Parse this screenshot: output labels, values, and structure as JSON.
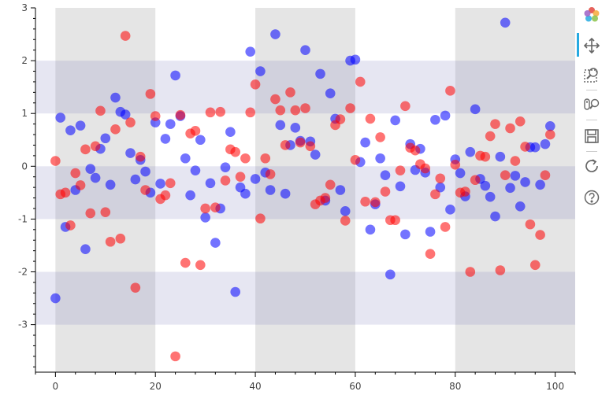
{
  "chart_data": {
    "type": "scatter",
    "title": "",
    "xlabel": "",
    "ylabel": "",
    "xlim": [
      -4,
      104
    ],
    "ylim": [
      -3.9,
      3
    ],
    "x_ticks": [
      "0",
      "20",
      "40",
      "60",
      "80",
      "100"
    ],
    "y_ticks": [
      "3",
      "2",
      "1",
      "0",
      "-1",
      "-2",
      "-3"
    ],
    "x_bands": [
      [
        0,
        20
      ],
      [
        40,
        60
      ],
      [
        80,
        104
      ]
    ],
    "y_bands": [
      [
        1,
        2
      ],
      [
        -1,
        0
      ],
      [
        -3,
        -2
      ]
    ],
    "series": [
      {
        "color": "#0000ff",
        "x": [
          0,
          1,
          2,
          3,
          4,
          5,
          6,
          7,
          8,
          9,
          10,
          11,
          12,
          13,
          14,
          15,
          16,
          17,
          18,
          19,
          20,
          21,
          22,
          23,
          24,
          25,
          26,
          27,
          28,
          29,
          30,
          31,
          32,
          33,
          34,
          35,
          36,
          37,
          38,
          39,
          40,
          41,
          42,
          43,
          44,
          45,
          46,
          47,
          48,
          49,
          50,
          51,
          52,
          53,
          54,
          55,
          56,
          57,
          58,
          59,
          60,
          61,
          62,
          63,
          64,
          65,
          66,
          67,
          68,
          69,
          70,
          71,
          72,
          73,
          74,
          75,
          76,
          77,
          78,
          79,
          80,
          81,
          82,
          83,
          84,
          85,
          86,
          87,
          88,
          89,
          90,
          91,
          92,
          93,
          94,
          95,
          96,
          97,
          98,
          99
        ],
        "y": [
          -2.5,
          0.92,
          -1.15,
          0.68,
          -0.45,
          0.77,
          -1.57,
          -0.05,
          -0.22,
          0.33,
          0.53,
          -0.35,
          1.3,
          1.03,
          0.98,
          0.25,
          -0.25,
          0.12,
          -0.1,
          -0.5,
          0.83,
          -0.33,
          0.52,
          0.8,
          1.72,
          0.95,
          0.15,
          -0.55,
          -0.08,
          0.5,
          -0.97,
          -0.32,
          -1.45,
          -0.8,
          -0.02,
          0.65,
          -2.38,
          -0.4,
          -0.52,
          2.17,
          -0.24,
          1.8,
          -0.12,
          -0.45,
          2.5,
          0.78,
          -0.52,
          0.4,
          0.73,
          0.48,
          2.2,
          0.47,
          0.22,
          1.75,
          -0.65,
          1.38,
          0.9,
          -0.45,
          -0.85,
          2.0,
          2.02,
          0.08,
          0.45,
          -1.2,
          -0.72,
          0.15,
          -0.17,
          -2.05,
          0.87,
          -0.38,
          -1.29,
          0.42,
          -0.07,
          0.33,
          -0.12,
          -1.24,
          0.88,
          -0.4,
          0.96,
          -0.82,
          0.13,
          -0.13,
          -0.57,
          0.27,
          1.08,
          -0.24,
          -0.37,
          -0.58,
          -0.95,
          0.18,
          2.72,
          -0.41,
          -0.18,
          -0.76,
          -0.3,
          0.36,
          0.36,
          -0.35,
          0.42,
          0.76
        ]
      },
      {
        "color": "#ff0000",
        "x": [
          0,
          1,
          2,
          3,
          4,
          5,
          6,
          7,
          8,
          9,
          10,
          11,
          12,
          13,
          14,
          15,
          16,
          17,
          18,
          19,
          20,
          21,
          22,
          23,
          24,
          25,
          26,
          27,
          28,
          29,
          30,
          31,
          32,
          33,
          34,
          35,
          36,
          37,
          38,
          39,
          40,
          41,
          42,
          43,
          44,
          45,
          46,
          47,
          48,
          49,
          50,
          51,
          52,
          53,
          54,
          55,
          56,
          57,
          58,
          59,
          60,
          61,
          62,
          63,
          64,
          65,
          66,
          67,
          68,
          69,
          70,
          71,
          72,
          73,
          74,
          75,
          76,
          77,
          78,
          79,
          80,
          81,
          82,
          83,
          84,
          85,
          86,
          87,
          88,
          89,
          90,
          91,
          92,
          93,
          94,
          95,
          96,
          97,
          98,
          99
        ],
        "y": [
          0.1,
          -0.53,
          -0.5,
          -1.12,
          -0.13,
          -0.36,
          0.32,
          -0.89,
          0.38,
          1.05,
          -0.87,
          -1.43,
          0.7,
          -1.37,
          2.47,
          0.83,
          -2.3,
          0.18,
          -0.45,
          1.37,
          0.95,
          -0.62,
          -0.55,
          -0.32,
          -3.6,
          0.97,
          -1.83,
          0.62,
          0.67,
          -1.87,
          -0.8,
          1.02,
          -0.78,
          1.03,
          -0.27,
          0.32,
          0.27,
          -0.2,
          0.15,
          1.02,
          1.55,
          -0.99,
          0.15,
          -0.15,
          1.27,
          1.06,
          0.4,
          1.4,
          1.06,
          0.45,
          1.1,
          0.38,
          -0.72,
          -0.65,
          -0.6,
          -0.35,
          0.78,
          0.89,
          -1.03,
          1.1,
          0.12,
          1.6,
          -0.67,
          0.9,
          -0.68,
          0.55,
          -0.48,
          -1.02,
          -1.02,
          -0.08,
          1.14,
          0.35,
          0.3,
          0.04,
          -0.04,
          -1.66,
          -0.53,
          -0.23,
          -1.15,
          1.43,
          0.03,
          -0.5,
          -0.48,
          -2.0,
          -0.26,
          0.2,
          0.18,
          0.57,
          0.8,
          -1.97,
          -0.17,
          0.72,
          0.1,
          0.85,
          0.37,
          -1.1,
          -1.87,
          -1.3,
          -0.17,
          0.6
        ]
      }
    ]
  },
  "toolbar": {
    "tools": [
      {
        "name": "pan",
        "icon": "pan-icon"
      },
      {
        "name": "box-zoom",
        "icon": "box-zoom-icon"
      },
      {
        "name": "wheel-zoom",
        "icon": "wheel-zoom-icon"
      },
      {
        "name": "save",
        "icon": "save-icon"
      },
      {
        "name": "reset",
        "icon": "reset-icon"
      },
      {
        "name": "help",
        "icon": "help-icon"
      }
    ]
  }
}
